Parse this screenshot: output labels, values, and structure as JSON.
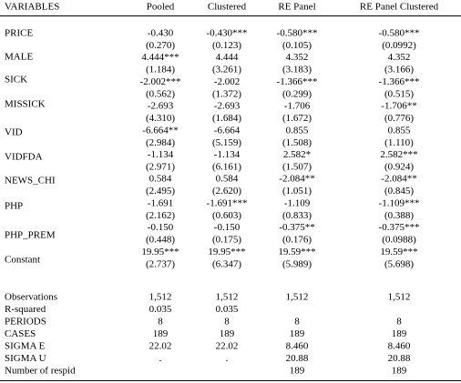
{
  "table": {
    "header": [
      "VARIABLES",
      "Pooled",
      "Clustered",
      "RE Panel",
      "RE Panel Clustered"
    ],
    "rows": [
      {
        "variable": "PRICE",
        "coef": [
          "-0.430",
          "-0.430***",
          "-0.580***",
          "-0.580***"
        ],
        "se": [
          "(0.270)",
          "(0.123)",
          "(0.105)",
          "(0.0992)"
        ]
      },
      {
        "variable": "MALE",
        "coef": [
          "4.444***",
          "4.444",
          "4.352",
          "4.352"
        ],
        "se": [
          "(1.184)",
          "(3.261)",
          "(3.183)",
          "(3.166)"
        ]
      },
      {
        "variable": "SICK",
        "coef": [
          "-2.002***",
          "-2.002",
          "-1.366***",
          "-1.366***"
        ],
        "se": [
          "(0.562)",
          "(1.372)",
          "(0.299)",
          "(0.515)"
        ]
      },
      {
        "variable": "MISSICK",
        "coef": [
          "-2.693",
          "-2.693",
          "-1.706",
          "-1.706**"
        ],
        "se": [
          "(4.310)",
          "(1.684)",
          "(1.672)",
          "(0.776)"
        ]
      },
      {
        "variable": "VID",
        "coef": [
          "-6.664**",
          "-6.664",
          "0.855",
          "0.855"
        ],
        "se": [
          "(2.984)",
          "(5.159)",
          "(1.508)",
          "(1.110)"
        ]
      },
      {
        "variable": "VIDFDA",
        "coef": [
          "-1.134",
          "-1.134",
          "2.582*",
          "2.582***"
        ],
        "se": [
          "(2.971)",
          "(6.161)",
          "(1.507)",
          "(0.924)"
        ]
      },
      {
        "variable": "NEWS_CHI",
        "coef": [
          "0.584",
          "0.584",
          "-2.084**",
          "-2.084**"
        ],
        "se": [
          "(2.495)",
          "(2.620)",
          "(1.051)",
          "(0.845)"
        ]
      },
      {
        "variable": "PHP",
        "coef": [
          "-1.691",
          "-1.691***",
          "-1.109",
          "-1.109***"
        ],
        "se": [
          "(2.162)",
          "(0.603)",
          "(0.833)",
          "(0.388)"
        ]
      },
      {
        "variable": "PHP_PREM",
        "coef": [
          "-0.150",
          "-0.150",
          "-0.375**",
          "-0.375***"
        ],
        "se": [
          "(0.448)",
          "(0.175)",
          "(0.176)",
          "(0.0988)"
        ]
      },
      {
        "variable": "Constant",
        "coef": [
          "19.95***",
          "19.95***",
          "19.59***",
          "19.59***"
        ],
        "se": [
          "(2.737)",
          "(6.347)",
          "(5.989)",
          "(5.698)"
        ]
      }
    ],
    "stats": [
      {
        "label": "Observations",
        "values": [
          "1,512",
          "1,512",
          "1,512",
          "1,512"
        ]
      },
      {
        "label": "R-squared",
        "values": [
          "0.035",
          "0.035",
          null,
          null
        ]
      },
      {
        "label": "PERIODS",
        "values": [
          "8",
          "8",
          "8",
          "8"
        ]
      },
      {
        "label": "CASES",
        "values": [
          "189",
          "189",
          "189",
          "189"
        ]
      },
      {
        "label": "SIGMA E",
        "values": [
          "22.02",
          "22.02",
          "8.460",
          "8.460"
        ]
      },
      {
        "label": "SIGMA U",
        "values": [
          ".",
          ".",
          "20.88",
          "20.88"
        ]
      },
      {
        "label": "Number of respid",
        "values": [
          null,
          null,
          "189",
          "189"
        ]
      }
    ]
  }
}
